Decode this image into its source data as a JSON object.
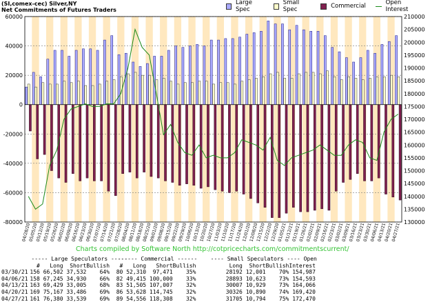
{
  "title_lines": [
    "(SI,comex-cec) Silver,NY",
    "Net Commitments of Futures Traders"
  ],
  "legend": [
    {
      "name": "Large Spec",
      "color": "#aaaaff",
      "kind": "box"
    },
    {
      "name": "Small Spec",
      "color": "#ffffcc",
      "kind": "box"
    },
    {
      "name": "Commercial",
      "color": "#802050",
      "kind": "box"
    },
    {
      "name": "Open Interest",
      "color": "#1a8a1a",
      "kind": "line"
    }
  ],
  "credit": "Charts compiled by Software North  http://cotpricecharts.com/commitmentscurrent/",
  "chart_data": {
    "type": "bar",
    "left_axis": {
      "min": -80000,
      "max": 60000,
      "ticks": [
        60000,
        40000,
        20000,
        0,
        -20000,
        -40000,
        -60000,
        -80000
      ],
      "tick_labels": [
        "60000",
        "40000",
        "20000",
        "0",
        "-20000",
        "-40000",
        "-60000",
        "-80000"
      ]
    },
    "right_axis": {
      "min": 130000,
      "max": 210000,
      "ticks": [
        210000,
        205000,
        200000,
        195000,
        190000,
        185000,
        180000,
        175000,
        170000,
        165000,
        160000,
        155000,
        150000,
        145000,
        140000,
        135000,
        130000
      ],
      "tick_labels": [
        "210000",
        "205000",
        "200000",
        "195000",
        "190000",
        "185000",
        "180000",
        "175000",
        "170000",
        "165000",
        "160000",
        "155000",
        "150000",
        "145000",
        "140000",
        "135000",
        "130000"
      ]
    },
    "x_tick_labels": [
      "04/28/20",
      "05/05/20",
      "05/12/20",
      "05/19/20",
      "05/26/20",
      "06/02/20",
      "06/09/20",
      "06/16/20",
      "06/23/20",
      "06/30/20",
      "07/07/20",
      "07/14/20",
      "07/21/20",
      "07/28/20",
      "08/04/20",
      "08/11/20",
      "08/18/20",
      "08/25/20",
      "09/01/20",
      "09/08/20",
      "09/15/20",
      "09/22/20",
      "09/29/20",
      "10/06/20",
      "10/13/20",
      "10/20/20",
      "10/27/20",
      "11/03/20",
      "11/10/20",
      "11/17/20",
      "11/24/20",
      "12/01/20",
      "12/08/20",
      "12/15/20",
      "12/22/20",
      "12/29/20",
      "01/05/21",
      "01/12/21",
      "01/19/21",
      "01/26/21",
      "02/02/21",
      "02/09/21",
      "02/16/21",
      "02/23/21",
      "03/02/21",
      "03/09/21",
      "03/16/21",
      "03/23/21",
      "03/30/21",
      "04/06/21",
      "04/13/21",
      "04/20/21",
      "04/27/21"
    ],
    "series": [
      {
        "name": "Large Spec",
        "color": "#aaaaff",
        "values": [
          12000,
          22000,
          19000,
          31000,
          37000,
          37000,
          33000,
          37000,
          38000,
          38000,
          37000,
          44000,
          47000,
          34000,
          35000,
          29000,
          26000,
          28000,
          33000,
          33000,
          37000,
          40000,
          39000,
          40000,
          41000,
          40000,
          44000,
          44000,
          45000,
          45000,
          46000,
          48000,
          49000,
          50000,
          57000,
          55000,
          55000,
          51000,
          54000,
          51000,
          50000,
          50000,
          47000,
          39000,
          36000,
          32000,
          29000,
          32000,
          37000,
          35000,
          41000,
          43000,
          47000
        ]
      },
      {
        "name": "Small Spec",
        "color": "#ffffcc",
        "values": [
          14000,
          12000,
          15000,
          14000,
          14000,
          16000,
          15000,
          16000,
          13000,
          13000,
          14000,
          16000,
          17000,
          19000,
          21000,
          22000,
          20000,
          20000,
          17000,
          18000,
          16000,
          14000,
          15000,
          15000,
          16000,
          16000,
          14000,
          15000,
          15000,
          14000,
          16000,
          17000,
          18000,
          19000,
          21000,
          22000,
          18000,
          18000,
          21000,
          22000,
          22000,
          21000,
          23000,
          19000,
          17000,
          19000,
          18000,
          17000,
          18000,
          19000,
          19000,
          20000,
          19000
        ]
      },
      {
        "name": "Commercial",
        "color": "#802050",
        "values": [
          -18000,
          -37000,
          -34000,
          -45000,
          -50000,
          -53000,
          -47000,
          -52000,
          -50000,
          -52000,
          -52000,
          -59000,
          -62000,
          -47000,
          -46000,
          -50000,
          -46000,
          -49000,
          -50000,
          -52000,
          -53000,
          -55000,
          -54000,
          -55000,
          -57000,
          -56000,
          -58000,
          -59000,
          -60000,
          -59000,
          -61000,
          -64000,
          -67000,
          -70000,
          -77000,
          -77000,
          -74000,
          -70000,
          -73000,
          -73000,
          -72000,
          -71000,
          -72000,
          -59000,
          -53000,
          -51000,
          -47000,
          -52000,
          -52000,
          -50000,
          -61000,
          -63000,
          -65000
        ]
      },
      {
        "name": "Open Interest",
        "color": "#1a8a1a",
        "values": [
          140000,
          135000,
          137000,
          152000,
          158000,
          170000,
          174000,
          175000,
          176000,
          175000,
          175000,
          176000,
          176000,
          180000,
          190000,
          205000,
          198000,
          195000,
          180000,
          164000,
          168000,
          161000,
          157000,
          156000,
          160000,
          155000,
          156000,
          155000,
          155000,
          157000,
          162000,
          161000,
          160000,
          158000,
          163000,
          154000,
          152000,
          155000,
          156000,
          157000,
          158000,
          160000,
          158000,
          156000,
          156000,
          160000,
          162000,
          161000,
          155000,
          154000,
          165000,
          170000,
          172000
        ]
      }
    ]
  },
  "table": {
    "group_headers": {
      "large": "----- Large Speculators -----",
      "commercial": "------ Commercial ------",
      "small": "---- Small Speculators ----",
      "oi": "Open"
    },
    "columns": {
      "date": "",
      "large_num": "#",
      "large_long": "Long",
      "large_short": "Short",
      "large_bullish": "Bullish",
      "comm_num": "#",
      "comm_long": "Long",
      "comm_short": "Short",
      "comm_bullish": "Bullish",
      "small_long": "Long",
      "small_short": "Short",
      "small_bullish": "Bullish",
      "oi": "Interest"
    },
    "rows": [
      {
        "date": "03/30/21",
        "large_num": "156",
        "large_long": "66,502",
        "large_short": "37,532",
        "large_bullish": "64%",
        "comm_num": "80",
        "comm_long": "52,310",
        "comm_short": "97,471",
        "comm_bullish": "35%",
        "small_long": "28192",
        "small_short": "12,001",
        "small_bullish": "70%",
        "oi": "154,987"
      },
      {
        "date": "04/06/21",
        "large_num": "158",
        "large_long": "67,245",
        "large_short": "34,930",
        "large_bullish": "66%",
        "comm_num": "82",
        "comm_long": "49,415",
        "comm_short": "100,000",
        "comm_bullish": "33%",
        "small_long": "28893",
        "small_short": "10,623",
        "small_bullish": "73%",
        "oi": "154,593"
      },
      {
        "date": "04/13/21",
        "large_num": "163",
        "large_long": "69,429",
        "large_short": "33,005",
        "large_bullish": "68%",
        "comm_num": "83",
        "comm_long": "51,505",
        "comm_short": "107,007",
        "comm_bullish": "32%",
        "small_long": "30007",
        "small_short": "10,929",
        "small_bullish": "73%",
        "oi": "164,066"
      },
      {
        "date": "04/20/21",
        "large_num": "169",
        "large_long": "75,167",
        "large_short": "33,486",
        "large_bullish": "69%",
        "comm_num": "86",
        "comm_long": "53,628",
        "comm_short": "114,745",
        "comm_bullish": "32%",
        "small_long": "30326",
        "small_short": "10,890",
        "small_bullish": "74%",
        "oi": "169,420"
      },
      {
        "date": "04/27/21",
        "large_num": "161",
        "large_long": "76,380",
        "large_short": "33,539",
        "large_bullish": "69%",
        "comm_num": "89",
        "comm_long": "54,556",
        "comm_short": "118,308",
        "comm_bullish": "32%",
        "small_long": "31705",
        "small_short": "10,794",
        "small_bullish": "75%",
        "oi": "172,470"
      }
    ]
  }
}
